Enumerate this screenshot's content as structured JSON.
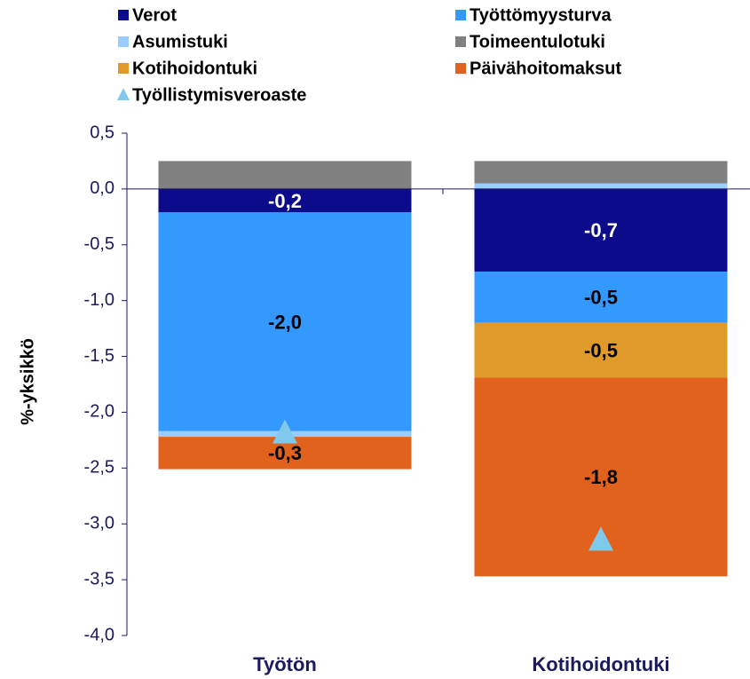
{
  "chart_data": {
    "type": "bar",
    "stacked": true,
    "y_label": "%-yksikkö",
    "categories": [
      "Työtön",
      "Kotihoidontuki"
    ],
    "series": [
      {
        "name": "Verot",
        "color": "#0b0b8c",
        "values": [
          -0.21,
          -0.74
        ],
        "value_labels": [
          "-0,2",
          "-0,7"
        ]
      },
      {
        "name": "Työttömyysturva",
        "color": "#3399ff",
        "values": [
          -1.96,
          -0.46
        ],
        "value_labels": [
          "-2,0",
          "-0,5"
        ]
      },
      {
        "name": "Asumistuki",
        "color": "#99ccff",
        "values": [
          -0.05,
          0.05
        ],
        "value_labels": [
          null,
          null
        ]
      },
      {
        "name": "Toimeentulotuki",
        "color": "#808080",
        "values": [
          0.25,
          0.2
        ],
        "value_labels": [
          null,
          null
        ]
      },
      {
        "name": "Kotihoidontuki",
        "color": "#e09a2a",
        "values": [
          0,
          -0.49
        ],
        "value_labels": [
          null,
          "-0,5"
        ]
      },
      {
        "name": "Päivähoitomaksut",
        "color": "#e0621c",
        "values": [
          -0.29,
          -1.78
        ],
        "value_labels": [
          "-0,3",
          "-1,8"
        ]
      },
      {
        "name": "Työllistymisveroaste",
        "color": "#80c8ec",
        "type": "marker",
        "values": [
          -2.2,
          -3.16
        ]
      }
    ],
    "ylim": [
      -4.0,
      0.5
    ],
    "yticks": [
      {
        "value": -4.0,
        "label": "-4,0"
      },
      {
        "value": -3.5,
        "label": "-3,5"
      },
      {
        "value": -3.0,
        "label": "-3,0"
      },
      {
        "value": -2.5,
        "label": "-2,5"
      },
      {
        "value": -2.0,
        "label": "-2,0"
      },
      {
        "value": -1.5,
        "label": "-1,5"
      },
      {
        "value": -1.0,
        "label": "-1,0"
      },
      {
        "value": -0.5,
        "label": "-0,5"
      },
      {
        "value": 0.0,
        "label": "0,0"
      },
      {
        "value": 0.5,
        "label": "0,5"
      }
    ],
    "grid": false
  }
}
